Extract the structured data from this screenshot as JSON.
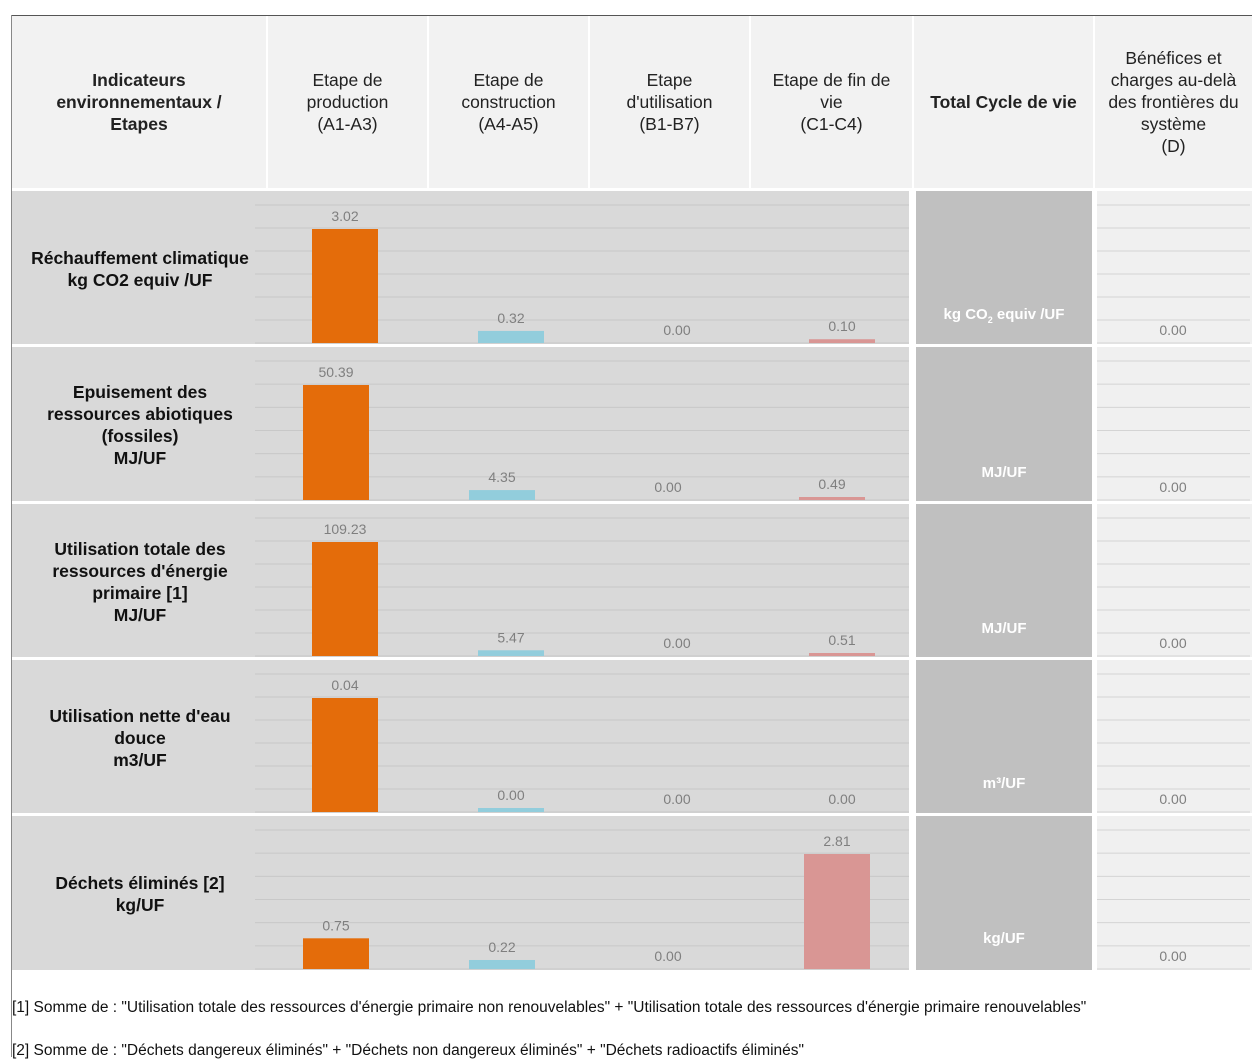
{
  "headers": {
    "indicators": "Indicateurs\nenvironnementaux /\nEtapes",
    "production": "Etape de\nproduction\n(A1-A3)",
    "construction": "Etape de\nconstruction\n(A4-A5)",
    "utilisation": "Etape\nd'utilisation\n(B1-B7)",
    "fin_de_vie": "Etape de fin de\nvie\n(C1-C4)",
    "total": "Total Cycle de vie",
    "benefices": "Bénéfices et\ncharges au-delà\ndes frontières du\nsystème\n(D)"
  },
  "rows": [
    {
      "label": "Réchauffement climatique\nkg CO2 equiv /UF",
      "unit_html": "kg CO<sub>2</sub> equiv /UF"
    },
    {
      "label": "Epuisement des\nressources abiotiques\n(fossiles)\nMJ/UF",
      "unit_html": "MJ/UF"
    },
    {
      "label": "Utilisation totale des\nressources d'énergie\nprimaire [1]\nMJ/UF",
      "unit_html": "MJ/UF"
    },
    {
      "label": "Utilisation nette d'eau\ndouce\nm3/UF",
      "unit_html": "m³/UF"
    },
    {
      "label": "Déchets éliminés [2]\nkg/UF",
      "unit_html": "kg/UF"
    }
  ],
  "footnotes": [
    "[1] Somme de : \"Utilisation totale des ressources d'énergie primaire non renouvelables\" + \"Utilisation totale des ressources d'énergie primaire renouvelables\"",
    "[2] Somme de : \"Déchets dangereux éliminés\" + \"Déchets non dangereux éliminés\" + \"Déchets radioactifs éliminés\""
  ],
  "colors": {
    "production": "#e46c0a",
    "construction": "#92cddc",
    "utilisation": "#b7dee8",
    "fin_de_vie": "#d99694",
    "value_label": "#7f7f7f"
  },
  "chart_data": {
    "type": "bar",
    "categories": [
      "Etape de production (A1-A3)",
      "Etape de construction (A4-A5)",
      "Etape d'utilisation (B1-B7)",
      "Etape de fin de vie (C1-C4)"
    ],
    "panels": [
      {
        "indicator": "Réchauffement climatique",
        "unit": "kg CO2 equiv /UF",
        "values": [
          3.02,
          0.32,
          0.0,
          0.1
        ],
        "labels": [
          "3.02",
          "0.32",
          "0.00",
          "0.10"
        ],
        "d": 0.0,
        "d_label": "0.00"
      },
      {
        "indicator": "Epuisement des ressources abiotiques (fossiles)",
        "unit": "MJ/UF",
        "values": [
          50.39,
          4.35,
          0.0,
          0.49
        ],
        "labels": [
          "50.39",
          "4.35",
          "0.00",
          "0.49"
        ],
        "d": 0.0,
        "d_label": "0.00"
      },
      {
        "indicator": "Utilisation totale des ressources d'énergie primaire [1]",
        "unit": "MJ/UF",
        "values": [
          109.23,
          5.47,
          0.0,
          0.51
        ],
        "labels": [
          "109.23",
          "5.47",
          "0.00",
          "0.51"
        ],
        "d": 0.0,
        "d_label": "0.00"
      },
      {
        "indicator": "Utilisation nette d'eau douce",
        "unit": "m3/UF",
        "values": [
          0.04,
          0.0,
          0.0,
          0.0
        ],
        "labels": [
          "0.04",
          "0.00",
          "0.00",
          "0.00"
        ],
        "d": 0.0,
        "d_label": "0.00"
      },
      {
        "indicator": "Déchets éliminés [2]",
        "unit": "kg/UF",
        "values": [
          0.75,
          0.22,
          0.0,
          2.81
        ],
        "labels": [
          "0.75",
          "0.22",
          "0.00",
          "2.81"
        ],
        "d": 0.0,
        "d_label": "0.00"
      }
    ]
  }
}
